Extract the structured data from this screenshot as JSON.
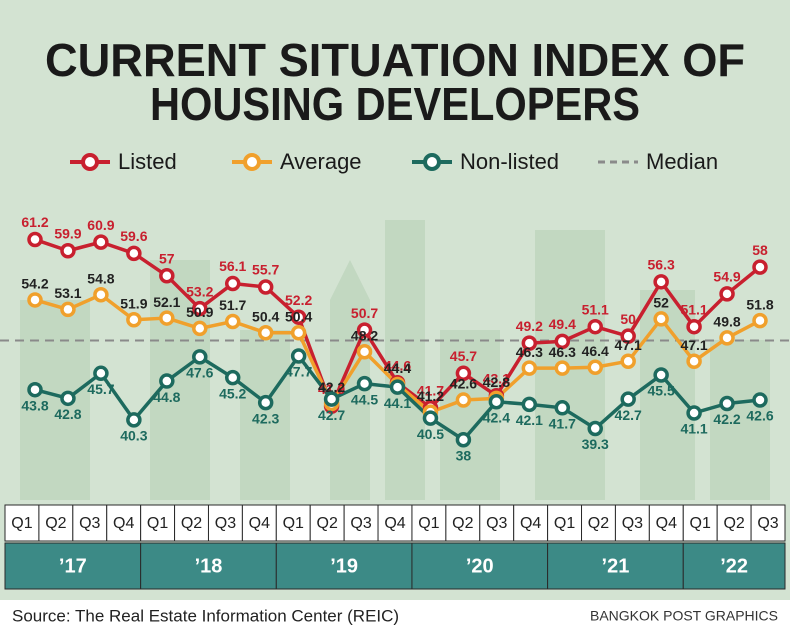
{
  "chart_data": {
    "type": "line",
    "title": [
      "CURRENT SITUATION INDEX OF",
      "HOUSING DEVELOPERS"
    ],
    "categories": [
      "Q1",
      "Q2",
      "Q3",
      "Q4",
      "Q1",
      "Q2",
      "Q3",
      "Q4",
      "Q1",
      "Q2",
      "Q3",
      "Q4",
      "Q1",
      "Q2",
      "Q3",
      "Q4",
      "Q1",
      "Q2",
      "Q3",
      "Q4",
      "Q1",
      "Q2",
      "Q3"
    ],
    "years": [
      "’17",
      "’18",
      "’19",
      "’20",
      "’21",
      "’22"
    ],
    "series": [
      {
        "name": "Listed",
        "color": "#c8202f",
        "values": [
          61.2,
          59.9,
          60.9,
          59.6,
          57.0,
          53.2,
          56.1,
          55.7,
          52.2,
          41.9,
          50.7,
          44.6,
          41.7,
          45.7,
          43.1,
          49.2,
          49.4,
          51.1,
          50.0,
          56.3,
          51.1,
          54.9,
          58
        ]
      },
      {
        "name": "Average",
        "color": "#f0a02c",
        "values": [
          54.2,
          53.1,
          54.8,
          51.9,
          52.1,
          50.9,
          51.7,
          50.4,
          50.4,
          42.2,
          48.2,
          44.4,
          41.2,
          42.6,
          42.8,
          46.3,
          46.3,
          46.4,
          47.1,
          52.0,
          47.1,
          49.8,
          51.8
        ]
      },
      {
        "name": "Non-listed",
        "color": "#1d6a5e",
        "values": [
          43.8,
          42.8,
          45.7,
          40.3,
          44.8,
          47.6,
          45.2,
          42.3,
          47.7,
          42.7,
          44.5,
          44.1,
          40.5,
          38.0,
          42.4,
          42.1,
          41.7,
          39.3,
          42.7,
          45.5,
          41.1,
          42.2,
          42.6
        ]
      }
    ],
    "median": {
      "name": "Median",
      "color": "#8a8a8a",
      "value": 49.5
    },
    "ylim": [
      36,
      63
    ],
    "source": "Source: The Real Estate Information Center (REIC)",
    "credit": "BANGKOK POST GRAPHICS"
  }
}
